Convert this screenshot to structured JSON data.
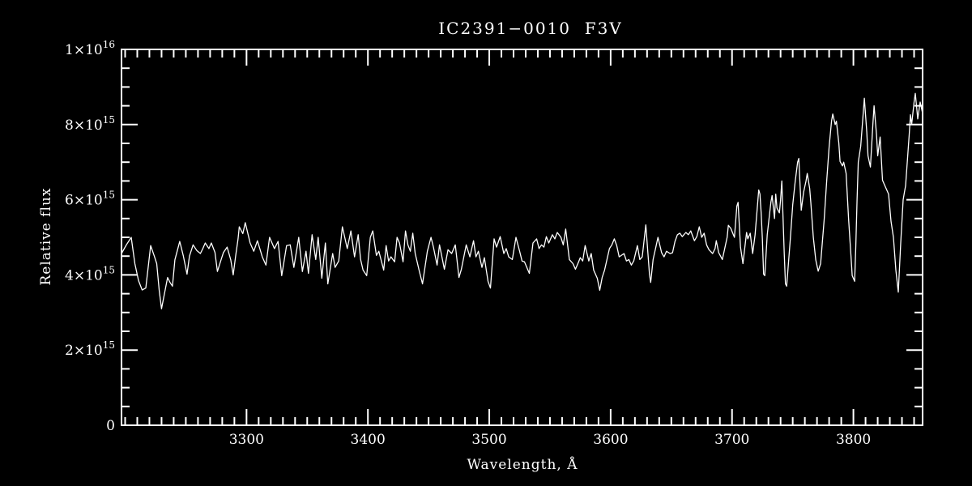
{
  "window": {
    "background": "#000000"
  },
  "chart_data": {
    "type": "line",
    "title": "IC2391−0010  F3V",
    "xlabel": "Wavelength, Å",
    "ylabel": "Relative flux",
    "legend": "none",
    "grid": false,
    "background": "#000000",
    "line_color": "#ffffff",
    "axis_color": "#ffffff",
    "text_color": "#ffffff",
    "xlim": [
      3197,
      3857
    ],
    "ylim": [
      0,
      10
    ],
    "flux_unit": "1e15",
    "x_minor_step": 10,
    "y_minor_step": 0.5,
    "y_major_step": 2,
    "x_major_ticks": [
      {
        "v": 3300,
        "label": "3300"
      },
      {
        "v": 3400,
        "label": "3400"
      },
      {
        "v": 3500,
        "label": "3500"
      },
      {
        "v": 3600,
        "label": "3600"
      },
      {
        "v": 3700,
        "label": "3700"
      },
      {
        "v": 3800,
        "label": "3800"
      }
    ],
    "y_major_ticks": [
      {
        "v": 0,
        "mant": "0",
        "exp": ""
      },
      {
        "v": 2,
        "mant": "2×10",
        "exp": "15"
      },
      {
        "v": 4,
        "mant": "4×10",
        "exp": "15"
      },
      {
        "v": 6,
        "mant": "6×10",
        "exp": "15"
      },
      {
        "v": 8,
        "mant": "8×10",
        "exp": "15"
      },
      {
        "v": 10,
        "mant": "1×10",
        "exp": "16"
      }
    ],
    "points": [
      [
        3197,
        4.57
      ],
      [
        3201,
        4.8
      ],
      [
        3205,
        5.0
      ],
      [
        3208,
        4.3
      ],
      [
        3211,
        3.85
      ],
      [
        3214,
        3.6
      ],
      [
        3217,
        3.65
      ],
      [
        3221,
        4.78
      ],
      [
        3224,
        4.5
      ],
      [
        3226,
        4.3
      ],
      [
        3228,
        3.6
      ],
      [
        3230,
        3.1
      ],
      [
        3233,
        3.6
      ],
      [
        3235,
        3.93
      ],
      [
        3237,
        3.8
      ],
      [
        3239,
        3.7
      ],
      [
        3241,
        4.4
      ],
      [
        3245,
        4.89
      ],
      [
        3248,
        4.5
      ],
      [
        3251,
        4.02
      ],
      [
        3253,
        4.5
      ],
      [
        3256,
        4.8
      ],
      [
        3259,
        4.65
      ],
      [
        3262,
        4.57
      ],
      [
        3264,
        4.7
      ],
      [
        3266,
        4.85
      ],
      [
        3269,
        4.7
      ],
      [
        3271,
        4.85
      ],
      [
        3274,
        4.6
      ],
      [
        3276,
        4.09
      ],
      [
        3279,
        4.4
      ],
      [
        3281,
        4.6
      ],
      [
        3284,
        4.74
      ],
      [
        3287,
        4.4
      ],
      [
        3289,
        4.0
      ],
      [
        3291,
        4.5
      ],
      [
        3293,
        4.96
      ],
      [
        3294,
        5.28
      ],
      [
        3297,
        5.1
      ],
      [
        3299,
        5.39
      ],
      [
        3303,
        4.85
      ],
      [
        3306,
        4.63
      ],
      [
        3309,
        4.91
      ],
      [
        3313,
        4.48
      ],
      [
        3316,
        4.26
      ],
      [
        3319,
        5.0
      ],
      [
        3323,
        4.7
      ],
      [
        3326,
        4.89
      ],
      [
        3329,
        3.98
      ],
      [
        3333,
        4.78
      ],
      [
        3336,
        4.8
      ],
      [
        3339,
        4.2
      ],
      [
        3343,
        5.0
      ],
      [
        3346,
        4.09
      ],
      [
        3349,
        4.63
      ],
      [
        3351,
        4.04
      ],
      [
        3354,
        5.07
      ],
      [
        3357,
        4.41
      ],
      [
        3359,
        5.0
      ],
      [
        3362,
        3.91
      ],
      [
        3365,
        4.85
      ],
      [
        3367,
        3.76
      ],
      [
        3371,
        4.57
      ],
      [
        3373,
        4.2
      ],
      [
        3376,
        4.37
      ],
      [
        3379,
        5.28
      ],
      [
        3383,
        4.7
      ],
      [
        3386,
        5.17
      ],
      [
        3389,
        4.48
      ],
      [
        3392,
        5.07
      ],
      [
        3394,
        4.41
      ],
      [
        3396,
        4.13
      ],
      [
        3399,
        3.98
      ],
      [
        3402,
        5.0
      ],
      [
        3404,
        5.17
      ],
      [
        3407,
        4.52
      ],
      [
        3409,
        4.63
      ],
      [
        3413,
        4.13
      ],
      [
        3415,
        4.78
      ],
      [
        3417,
        4.37
      ],
      [
        3419,
        4.48
      ],
      [
        3422,
        4.35
      ],
      [
        3424,
        5.0
      ],
      [
        3426,
        4.85
      ],
      [
        3429,
        4.35
      ],
      [
        3431,
        5.17
      ],
      [
        3433,
        4.8
      ],
      [
        3435,
        4.63
      ],
      [
        3437,
        5.11
      ],
      [
        3439,
        4.57
      ],
      [
        3442,
        4.15
      ],
      [
        3445,
        3.76
      ],
      [
        3449,
        4.63
      ],
      [
        3452,
        5.0
      ],
      [
        3454,
        4.74
      ],
      [
        3457,
        4.26
      ],
      [
        3459,
        4.8
      ],
      [
        3463,
        4.15
      ],
      [
        3466,
        4.67
      ],
      [
        3469,
        4.57
      ],
      [
        3472,
        4.8
      ],
      [
        3475,
        3.93
      ],
      [
        3477,
        4.15
      ],
      [
        3481,
        4.8
      ],
      [
        3484,
        4.48
      ],
      [
        3487,
        4.91
      ],
      [
        3489,
        4.48
      ],
      [
        3491,
        4.63
      ],
      [
        3494,
        4.2
      ],
      [
        3496,
        4.46
      ],
      [
        3499,
        3.83
      ],
      [
        3501,
        3.65
      ],
      [
        3504,
        4.96
      ],
      [
        3506,
        4.74
      ],
      [
        3509,
        5.02
      ],
      [
        3512,
        4.57
      ],
      [
        3514,
        4.7
      ],
      [
        3516,
        4.48
      ],
      [
        3519,
        4.41
      ],
      [
        3522,
        5.0
      ],
      [
        3525,
        4.63
      ],
      [
        3527,
        4.37
      ],
      [
        3529,
        4.35
      ],
      [
        3533,
        4.04
      ],
      [
        3536,
        4.85
      ],
      [
        3539,
        4.96
      ],
      [
        3541,
        4.7
      ],
      [
        3543,
        4.8
      ],
      [
        3545,
        4.74
      ],
      [
        3547,
        5.02
      ],
      [
        3549,
        4.85
      ],
      [
        3552,
        5.07
      ],
      [
        3554,
        4.96
      ],
      [
        3556,
        5.13
      ],
      [
        3559,
        5.0
      ],
      [
        3561,
        4.8
      ],
      [
        3563,
        5.22
      ],
      [
        3566,
        4.41
      ],
      [
        3569,
        4.3
      ],
      [
        3571,
        4.15
      ],
      [
        3573,
        4.3
      ],
      [
        3575,
        4.46
      ],
      [
        3577,
        4.37
      ],
      [
        3579,
        4.78
      ],
      [
        3582,
        4.37
      ],
      [
        3584,
        4.57
      ],
      [
        3586,
        4.13
      ],
      [
        3589,
        3.91
      ],
      [
        3591,
        3.59
      ],
      [
        3593,
        3.93
      ],
      [
        3595,
        4.13
      ],
      [
        3599,
        4.7
      ],
      [
        3601,
        4.8
      ],
      [
        3603,
        4.96
      ],
      [
        3605,
        4.78
      ],
      [
        3607,
        4.48
      ],
      [
        3611,
        4.57
      ],
      [
        3613,
        4.37
      ],
      [
        3615,
        4.41
      ],
      [
        3617,
        4.26
      ],
      [
        3619,
        4.37
      ],
      [
        3622,
        4.78
      ],
      [
        3624,
        4.41
      ],
      [
        3626,
        4.48
      ],
      [
        3629,
        5.33
      ],
      [
        3632,
        4.02
      ],
      [
        3633,
        3.8
      ],
      [
        3635,
        4.41
      ],
      [
        3637,
        4.7
      ],
      [
        3639,
        5.0
      ],
      [
        3642,
        4.59
      ],
      [
        3644,
        4.48
      ],
      [
        3646,
        4.63
      ],
      [
        3649,
        4.57
      ],
      [
        3651,
        4.59
      ],
      [
        3653,
        4.89
      ],
      [
        3655,
        5.07
      ],
      [
        3657,
        5.11
      ],
      [
        3659,
        5.02
      ],
      [
        3662,
        5.13
      ],
      [
        3664,
        5.07
      ],
      [
        3666,
        5.17
      ],
      [
        3669,
        4.91
      ],
      [
        3671,
        5.02
      ],
      [
        3673,
        5.28
      ],
      [
        3675,
        5.0
      ],
      [
        3677,
        5.11
      ],
      [
        3679,
        4.8
      ],
      [
        3681,
        4.67
      ],
      [
        3684,
        4.57
      ],
      [
        3686,
        4.7
      ],
      [
        3687,
        4.91
      ],
      [
        3689,
        4.59
      ],
      [
        3692,
        4.41
      ],
      [
        3694,
        4.7
      ],
      [
        3696,
        5.0
      ],
      [
        3697,
        5.32
      ],
      [
        3699,
        5.24
      ],
      [
        3702,
        5.0
      ],
      [
        3704,
        5.83
      ],
      [
        3705,
        5.93
      ],
      [
        3707,
        4.74
      ],
      [
        3709,
        4.3
      ],
      [
        3712,
        5.13
      ],
      [
        3713,
        4.96
      ],
      [
        3715,
        5.11
      ],
      [
        3717,
        4.57
      ],
      [
        3719,
        5.07
      ],
      [
        3722,
        6.26
      ],
      [
        3723,
        6.15
      ],
      [
        3724,
        5.65
      ],
      [
        3725,
        4.96
      ],
      [
        3726,
        4.02
      ],
      [
        3727,
        3.98
      ],
      [
        3729,
        5.07
      ],
      [
        3732,
        5.93
      ],
      [
        3733,
        6.11
      ],
      [
        3735,
        5.5
      ],
      [
        3736,
        6.15
      ],
      [
        3737,
        5.78
      ],
      [
        3739,
        5.65
      ],
      [
        3740,
        6.0
      ],
      [
        3741,
        6.5
      ],
      [
        3743,
        4.57
      ],
      [
        3744,
        3.76
      ],
      [
        3745,
        3.7
      ],
      [
        3748,
        4.96
      ],
      [
        3750,
        5.87
      ],
      [
        3752,
        6.48
      ],
      [
        3754,
        7.0
      ],
      [
        3755,
        7.1
      ],
      [
        3757,
        5.72
      ],
      [
        3759,
        6.2
      ],
      [
        3761,
        6.5
      ],
      [
        3762,
        6.7
      ],
      [
        3764,
        6.3
      ],
      [
        3765,
        5.9
      ],
      [
        3767,
        5.0
      ],
      [
        3769,
        4.4
      ],
      [
        3771,
        4.1
      ],
      [
        3773,
        4.3
      ],
      [
        3774,
        4.7
      ],
      [
        3776,
        5.5
      ],
      [
        3778,
        6.5
      ],
      [
        3780,
        7.4
      ],
      [
        3782,
        8.1
      ],
      [
        3783,
        8.28
      ],
      [
        3785,
        8.0
      ],
      [
        3786,
        8.09
      ],
      [
        3788,
        7.5
      ],
      [
        3789,
        7.02
      ],
      [
        3791,
        6.9
      ],
      [
        3792,
        7.0
      ],
      [
        3794,
        6.7
      ],
      [
        3796,
        5.5
      ],
      [
        3798,
        4.5
      ],
      [
        3799,
        3.98
      ],
      [
        3801,
        3.83
      ],
      [
        3802,
        4.8
      ],
      [
        3803,
        6.0
      ],
      [
        3804,
        7.0
      ],
      [
        3806,
        7.42
      ],
      [
        3809,
        8.7
      ],
      [
        3811,
        7.8
      ],
      [
        3812,
        7.17
      ],
      [
        3814,
        6.87
      ],
      [
        3816,
        8.0
      ],
      [
        3817,
        8.5
      ],
      [
        3819,
        7.74
      ],
      [
        3820,
        7.17
      ],
      [
        3822,
        7.67
      ],
      [
        3824,
        6.52
      ],
      [
        3826,
        6.37
      ],
      [
        3829,
        6.15
      ],
      [
        3831,
        5.43
      ],
      [
        3833,
        5.0
      ],
      [
        3835,
        4.13
      ],
      [
        3837,
        3.54
      ],
      [
        3839,
        4.85
      ],
      [
        3841,
        6.0
      ],
      [
        3842,
        6.19
      ],
      [
        3843,
        6.37
      ],
      [
        3845,
        7.28
      ],
      [
        3846,
        7.74
      ],
      [
        3847,
        8.26
      ],
      [
        3848,
        8.0
      ],
      [
        3850,
        8.6
      ],
      [
        3851,
        8.83
      ],
      [
        3852,
        8.5
      ],
      [
        3853,
        8.15
      ],
      [
        3855,
        8.6
      ],
      [
        3857,
        8.3
      ]
    ]
  }
}
